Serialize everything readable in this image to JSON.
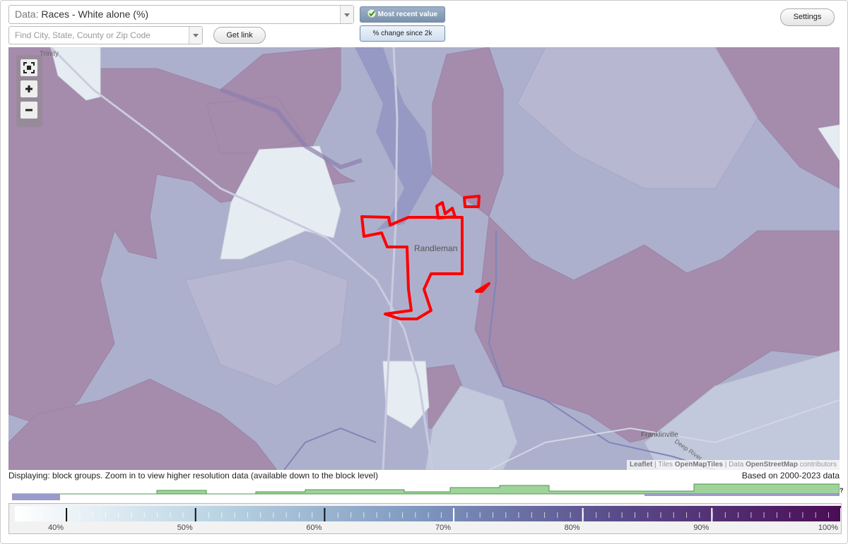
{
  "toolbar": {
    "data_prefix": "Data:",
    "data_selection": "Races - White alone (%)",
    "search_placeholder": "Find City, State, County or Zip Code",
    "get_link": "Get link",
    "most_recent": "Most recent value",
    "change_since": "% change since 2k",
    "settings": "Settings"
  },
  "map": {
    "places": [
      "Trinity",
      "Randleman",
      "Franklinville",
      "Deep River"
    ],
    "attribution": {
      "leaflet": "Leaflet",
      "separator": "|",
      "tiles": "Tiles",
      "tiles_source": "OpenMapTiles",
      "data": "Data",
      "data_source": "OpenStreetMap",
      "contributors": "contributors"
    }
  },
  "footer": {
    "displaying": "Displaying: block groups. Zoom in to view higher resolution data (available down to the block level)",
    "based_on": "Based on 2000-2023 data",
    "help": "?"
  },
  "scale": {
    "lim": [
      36,
      100
    ],
    "ticks": [
      {
        "value": 40,
        "label": "40%"
      },
      {
        "value": 50,
        "label": "50%"
      },
      {
        "value": 60,
        "label": "60%"
      },
      {
        "value": 70,
        "label": "70%"
      },
      {
        "value": 80,
        "label": "80%"
      },
      {
        "value": 90,
        "label": "90%"
      },
      {
        "value": 100,
        "label": "100%"
      }
    ]
  }
}
